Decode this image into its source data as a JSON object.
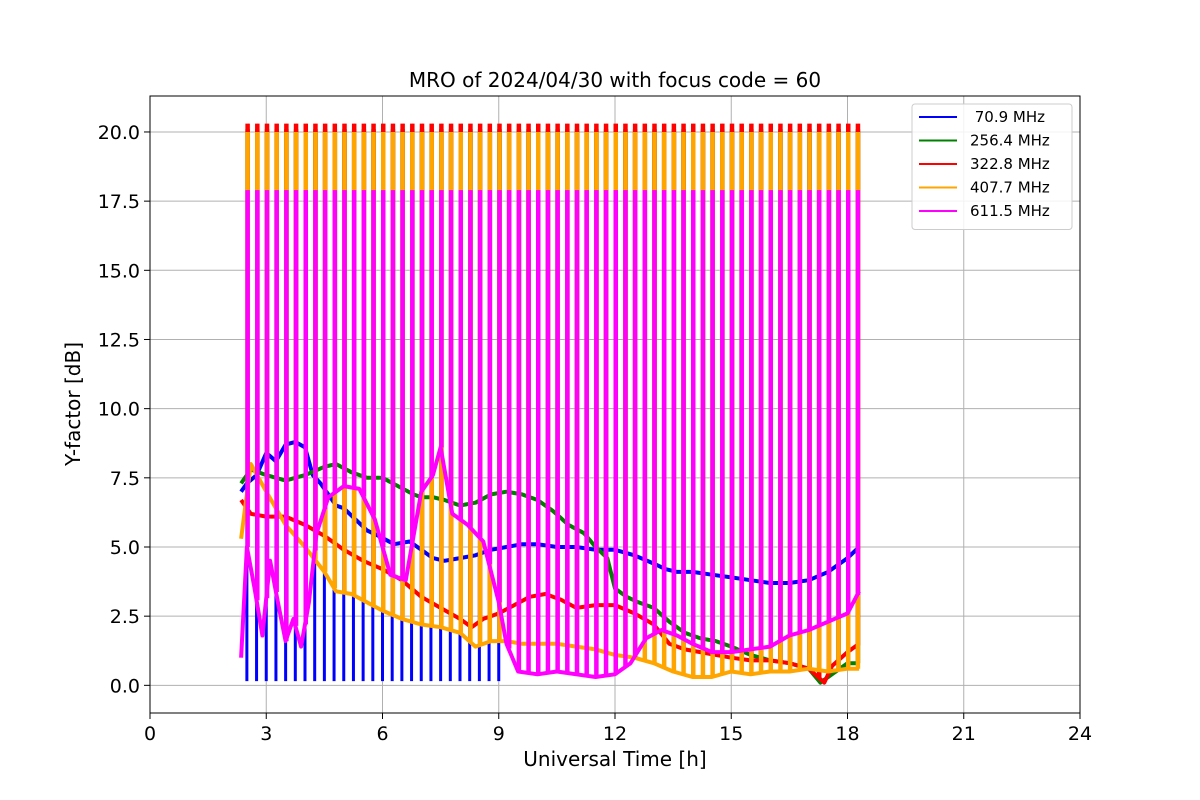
{
  "chart_data": {
    "type": "line",
    "title": "MRO of 2024/04/30 with focus code = 60",
    "xlabel": "Universal Time [h]",
    "ylabel": "Y-factor [dB]",
    "xlim": [
      0,
      24
    ],
    "ylim": [
      -1.0,
      21.3
    ],
    "xticks": [
      0,
      3,
      6,
      9,
      12,
      15,
      18,
      21,
      24
    ],
    "xtick_labels": [
      "0",
      "3",
      "6",
      "9",
      "12",
      "15",
      "18",
      "21",
      "24"
    ],
    "yticks": [
      0.0,
      2.5,
      5.0,
      7.5,
      10.0,
      12.5,
      15.0,
      17.5,
      20.0
    ],
    "ytick_labels": [
      "0.0",
      "2.5",
      "5.0",
      "7.5",
      "10.0",
      "12.5",
      "15.0",
      "17.5",
      "20.0"
    ],
    "grid": true,
    "legend_position": "top-right",
    "calibration": {
      "period_h": 0.25,
      "start_h": 2.5,
      "end_h": 18.25,
      "blue_dip_end_h": 9.0,
      "blue_dip_value": 0.15
    },
    "series": [
      {
        "name": " 70.9 MHz",
        "color": "#0000ff",
        "peak": 0.15,
        "x": [
          2.35,
          2.5,
          2.75,
          3.0,
          3.25,
          3.5,
          3.75,
          4.0,
          4.2,
          4.4,
          4.6,
          4.8,
          5.0,
          5.3,
          5.6,
          5.9,
          6.3,
          6.7,
          7.0,
          7.3,
          7.6,
          8.0,
          8.4,
          8.8,
          9.2,
          9.6,
          10.0,
          10.5,
          11.0,
          11.5,
          12.0,
          12.5,
          13.0,
          13.3,
          13.6,
          14.0,
          14.5,
          15.0,
          15.5,
          16.0,
          16.5,
          17.0,
          17.5,
          18.0,
          18.3
        ],
        "y": [
          7.0,
          7.3,
          7.6,
          8.4,
          8.1,
          8.7,
          8.8,
          8.6,
          7.6,
          7.3,
          6.9,
          6.5,
          6.4,
          6.0,
          5.6,
          5.4,
          5.1,
          5.2,
          4.9,
          4.6,
          4.5,
          4.6,
          4.7,
          4.9,
          5.0,
          5.1,
          5.1,
          5.0,
          5.0,
          4.9,
          4.9,
          4.7,
          4.4,
          4.2,
          4.1,
          4.1,
          4.0,
          3.9,
          3.8,
          3.7,
          3.7,
          3.8,
          4.1,
          4.6,
          5.0
        ]
      },
      {
        "name": "256.4 MHz",
        "color": "#008000",
        "peak": 20.1,
        "x": [
          2.35,
          2.6,
          3.0,
          3.5,
          4.0,
          4.5,
          4.8,
          5.2,
          5.6,
          6.0,
          6.4,
          6.8,
          7.0,
          7.3,
          7.6,
          8.0,
          8.4,
          8.8,
          9.2,
          9.6,
          10.0,
          10.4,
          10.8,
          11.2,
          11.5,
          11.8,
          12.0,
          12.3,
          12.6,
          13.0,
          13.4,
          13.8,
          14.2,
          14.6,
          15.0,
          15.5,
          16.0,
          16.5,
          17.0,
          17.3,
          17.6,
          18.0,
          18.3
        ],
        "y": [
          7.3,
          7.8,
          7.6,
          7.4,
          7.6,
          7.9,
          8.0,
          7.7,
          7.5,
          7.5,
          7.2,
          6.9,
          6.8,
          6.8,
          6.7,
          6.5,
          6.6,
          6.9,
          7.0,
          6.9,
          6.7,
          6.3,
          5.8,
          5.5,
          5.0,
          4.6,
          3.5,
          3.2,
          3.0,
          2.8,
          2.3,
          1.9,
          1.7,
          1.6,
          1.4,
          1.1,
          0.9,
          0.8,
          0.6,
          0.1,
          0.4,
          0.8,
          0.8
        ]
      },
      {
        "name": "322.8 MHz",
        "color": "#ff0000",
        "peak": 20.3,
        "x": [
          2.35,
          2.6,
          3.0,
          3.5,
          4.0,
          4.5,
          5.0,
          5.5,
          6.0,
          6.5,
          7.0,
          7.5,
          8.0,
          8.3,
          8.6,
          9.0,
          9.4,
          9.8,
          10.2,
          10.6,
          11.0,
          11.5,
          12.0,
          12.5,
          13.0,
          13.4,
          13.8,
          14.2,
          14.6,
          15.0,
          15.5,
          16.0,
          16.5,
          17.0,
          17.4,
          17.6,
          18.0,
          18.3
        ],
        "y": [
          6.7,
          6.2,
          6.1,
          6.1,
          5.8,
          5.4,
          4.9,
          4.5,
          4.2,
          3.8,
          3.2,
          2.8,
          2.4,
          2.1,
          2.4,
          2.6,
          2.9,
          3.2,
          3.3,
          3.1,
          2.8,
          2.9,
          2.9,
          2.6,
          2.2,
          1.5,
          1.3,
          1.2,
          1.1,
          1.0,
          0.9,
          0.9,
          0.8,
          0.6,
          0.1,
          0.7,
          1.2,
          1.5
        ]
      },
      {
        "name": "407.7 MHz",
        "color": "#ffa500",
        "peak": 20.0,
        "x": [
          2.35,
          2.6,
          3.0,
          3.5,
          4.0,
          4.5,
          4.8,
          5.2,
          5.6,
          6.0,
          6.5,
          7.0,
          7.5,
          8.0,
          8.4,
          8.8,
          9.2,
          9.6,
          10.0,
          10.5,
          11.0,
          11.5,
          12.0,
          12.5,
          13.0,
          13.5,
          14.0,
          14.5,
          15.0,
          15.5,
          16.0,
          16.5,
          17.0,
          17.5,
          18.0,
          18.3
        ],
        "y": [
          5.3,
          8.0,
          7.0,
          5.8,
          5.0,
          4.1,
          3.4,
          3.3,
          3.0,
          2.7,
          2.4,
          2.2,
          2.1,
          1.9,
          1.4,
          1.6,
          1.6,
          1.5,
          1.5,
          1.5,
          1.4,
          1.3,
          1.1,
          1.0,
          0.8,
          0.5,
          0.3,
          0.3,
          0.5,
          0.4,
          0.5,
          0.5,
          0.6,
          0.5,
          0.6,
          0.6
        ]
      },
      {
        "name": "611.5 MHz",
        "color": "#ff00ff",
        "peak": 17.9,
        "x": [
          2.35,
          2.5,
          2.7,
          2.9,
          3.1,
          3.3,
          3.5,
          3.7,
          3.9,
          4.1,
          4.3,
          4.6,
          5.0,
          5.4,
          5.8,
          6.2,
          6.6,
          7.0,
          7.3,
          7.5,
          7.8,
          8.2,
          8.6,
          9.0,
          9.2,
          9.5,
          10.0,
          10.5,
          11.0,
          11.5,
          12.0,
          12.4,
          12.8,
          13.2,
          13.6,
          14.0,
          14.5,
          15.0,
          15.5,
          16.0,
          16.5,
          17.0,
          17.5,
          18.0,
          18.3
        ],
        "y": [
          1.0,
          5.0,
          3.5,
          1.8,
          4.5,
          3.0,
          1.6,
          2.4,
          1.4,
          3.0,
          5.5,
          6.8,
          7.2,
          7.1,
          6.0,
          4.0,
          3.8,
          7.0,
          7.6,
          8.6,
          6.2,
          5.8,
          5.2,
          3.0,
          1.5,
          0.5,
          0.4,
          0.5,
          0.4,
          0.3,
          0.4,
          0.8,
          1.7,
          2.0,
          1.8,
          1.5,
          1.2,
          1.2,
          1.3,
          1.4,
          1.8,
          2.0,
          2.3,
          2.6,
          3.4
        ]
      }
    ]
  }
}
